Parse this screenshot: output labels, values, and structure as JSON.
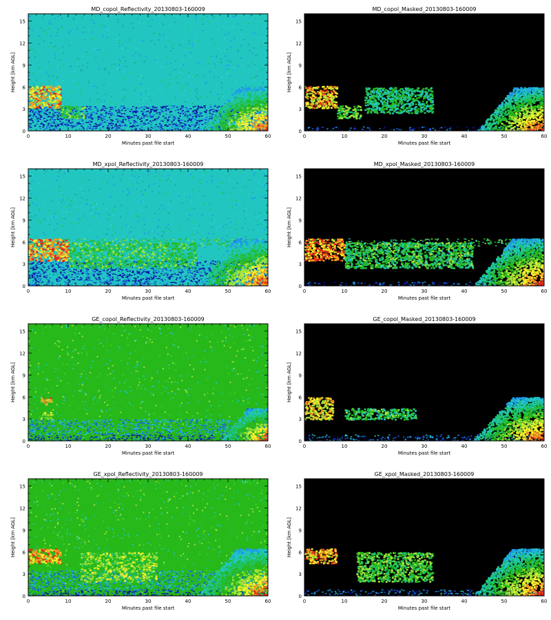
{
  "figure": {
    "colors": {
      "background": "#ffffff",
      "masked_background": "#000000",
      "reflectivity_scale": [
        "#0a10a0",
        "#1b5ee0",
        "#1e9be8",
        "#22c6c0",
        "#1fc46a",
        "#27b81a",
        "#9fe23a",
        "#f6f02a",
        "#f39a22",
        "#e22a1a"
      ]
    }
  },
  "chart_data": [
    {
      "type": "heatmap",
      "title": "MD_copol_Reflectivity_20130803-160009",
      "xlabel": "Minutes past file start",
      "ylabel": "Height [km AGL]",
      "xlim": [
        0,
        60
      ],
      "ylim": [
        0,
        16
      ],
      "xticks": [
        "0",
        "10",
        "20",
        "30",
        "40",
        "50",
        "60"
      ],
      "yticks": [
        "0",
        "3",
        "6",
        "9",
        "12",
        "15"
      ],
      "masked": false,
      "fill": "noise",
      "features": [
        {
          "name": "low layer",
          "x": [
            0,
            60
          ],
          "y": [
            0,
            0.6
          ],
          "value": 0.15
        },
        {
          "name": "lower band",
          "x": [
            0,
            60
          ],
          "y": [
            0.6,
            3.5
          ],
          "value": 0.08
        },
        {
          "name": "left cloud layer",
          "x": [
            0,
            8
          ],
          "y": [
            3.2,
            6.2
          ],
          "value": 0.8
        },
        {
          "name": "left cloud fragments",
          "x": [
            8,
            14
          ],
          "y": [
            1.8,
            3.5
          ],
          "value": 0.55
        },
        {
          "name": "storm",
          "x": [
            43,
            60
          ],
          "y": [
            0,
            6
          ],
          "value": 0.85
        }
      ]
    },
    {
      "type": "heatmap",
      "title": "MD_copol_Masked_20130803-160009",
      "xlabel": "Minutes past file start",
      "ylabel": "Height [km AGL]",
      "xlim": [
        0,
        60
      ],
      "ylim": [
        0,
        16
      ],
      "xticks": [
        "0",
        "10",
        "20",
        "30",
        "40",
        "50",
        "60"
      ],
      "yticks": [
        "0",
        "3",
        "6",
        "9",
        "12",
        "15"
      ],
      "masked": true,
      "fill": "none",
      "features": [
        {
          "name": "low layer",
          "x": [
            0,
            60
          ],
          "y": [
            0,
            0.6
          ],
          "value": 0.15
        },
        {
          "name": "left cloud layer",
          "x": [
            0,
            8
          ],
          "y": [
            3.2,
            6.2
          ],
          "value": 0.8
        },
        {
          "name": "left cloud fragments",
          "x": [
            8,
            14
          ],
          "y": [
            1.8,
            3.5
          ],
          "value": 0.55
        },
        {
          "name": "mid fragments",
          "x": [
            15,
            32
          ],
          "y": [
            2.5,
            6
          ],
          "value": 0.45
        },
        {
          "name": "storm",
          "x": [
            43,
            60
          ],
          "y": [
            0,
            6
          ],
          "value": 0.85
        }
      ]
    },
    {
      "type": "heatmap",
      "title": "MD_xpol_Reflectivity_20130803-160009",
      "xlabel": "Minutes past file start",
      "ylabel": "Height [km AGL]",
      "xlim": [
        0,
        60
      ],
      "ylim": [
        0,
        16
      ],
      "xticks": [
        "0",
        "10",
        "20",
        "30",
        "40",
        "50",
        "60"
      ],
      "yticks": [
        "0",
        "3",
        "6",
        "9",
        "12",
        "15"
      ],
      "masked": false,
      "fill": "noise",
      "features": [
        {
          "name": "low layer",
          "x": [
            0,
            60
          ],
          "y": [
            0,
            0.6
          ],
          "value": 0.15
        },
        {
          "name": "lower band",
          "x": [
            0,
            60
          ],
          "y": [
            0.6,
            3.5
          ],
          "value": 0.08
        },
        {
          "name": "layer at 6 km",
          "x": [
            0,
            60
          ],
          "y": [
            5.5,
            6.5
          ],
          "value": 0.5
        },
        {
          "name": "left cloud layer",
          "x": [
            0,
            10
          ],
          "y": [
            3.5,
            6.5
          ],
          "value": 0.85
        },
        {
          "name": "mid cloud fragments",
          "x": [
            10,
            42
          ],
          "y": [
            2.5,
            6
          ],
          "value": 0.5
        },
        {
          "name": "storm",
          "x": [
            42,
            60
          ],
          "y": [
            0,
            6.5
          ],
          "value": 0.9
        }
      ]
    },
    {
      "type": "heatmap",
      "title": "MD_xpol_Masked_20130803-160009",
      "xlabel": "Minutes past file start",
      "ylabel": "Height [km AGL]",
      "xlim": [
        0,
        60
      ],
      "ylim": [
        0,
        16
      ],
      "xticks": [
        "0",
        "10",
        "20",
        "30",
        "40",
        "50",
        "60"
      ],
      "yticks": [
        "0",
        "3",
        "6",
        "9",
        "12",
        "15"
      ],
      "masked": true,
      "fill": "none",
      "features": [
        {
          "name": "low layer",
          "x": [
            0,
            60
          ],
          "y": [
            0,
            0.6
          ],
          "value": 0.15
        },
        {
          "name": "layer at 6 km",
          "x": [
            0,
            60
          ],
          "y": [
            5.5,
            6.5
          ],
          "value": 0.5
        },
        {
          "name": "left cloud layer",
          "x": [
            0,
            10
          ],
          "y": [
            3.5,
            6.5
          ],
          "value": 0.85
        },
        {
          "name": "mid cloud fragments",
          "x": [
            10,
            42
          ],
          "y": [
            2.5,
            6
          ],
          "value": 0.5
        },
        {
          "name": "storm",
          "x": [
            42,
            60
          ],
          "y": [
            0,
            6.5
          ],
          "value": 0.9
        }
      ]
    },
    {
      "type": "heatmap",
      "title": "GE_copol_Reflectivity_20130803-160009",
      "xlabel": "Minutes past file start",
      "ylabel": "Height [km AGL]",
      "xlim": [
        0,
        60
      ],
      "ylim": [
        0,
        16
      ],
      "xticks": [
        "0",
        "10",
        "20",
        "30",
        "40",
        "50",
        "60"
      ],
      "yticks": [
        "0",
        "3",
        "6",
        "9",
        "12",
        "15"
      ],
      "masked": false,
      "fill": "noise-green",
      "features": [
        {
          "name": "low layer",
          "x": [
            0,
            60
          ],
          "y": [
            0,
            0.9
          ],
          "value": 0.1
        },
        {
          "name": "lower band",
          "x": [
            0,
            60
          ],
          "y": [
            0.9,
            3
          ],
          "value": 0.25
        },
        {
          "name": "left cloud",
          "x": [
            3,
            6
          ],
          "y": [
            5,
            6
          ],
          "value": 0.8
        },
        {
          "name": "left small cloud",
          "x": [
            3,
            6
          ],
          "y": [
            3,
            4
          ],
          "value": 0.65
        },
        {
          "name": "storm",
          "x": [
            48,
            60
          ],
          "y": [
            0,
            4.5
          ],
          "value": 0.9
        }
      ]
    },
    {
      "type": "heatmap",
      "title": "GE_copol_Masked_20130803-160009",
      "xlabel": "Minutes past file start",
      "ylabel": "Height [km AGL]",
      "xlim": [
        0,
        60
      ],
      "ylim": [
        0,
        16
      ],
      "xticks": [
        "0",
        "10",
        "20",
        "30",
        "40",
        "50",
        "60"
      ],
      "yticks": [
        "0",
        "3",
        "6",
        "9",
        "12",
        "15"
      ],
      "masked": true,
      "fill": "none",
      "features": [
        {
          "name": "low layer",
          "x": [
            0,
            60
          ],
          "y": [
            0,
            0.9
          ],
          "value": 0.2
        },
        {
          "name": "left cloud",
          "x": [
            0,
            7
          ],
          "y": [
            3,
            6
          ],
          "value": 0.75
        },
        {
          "name": "small fragments",
          "x": [
            10,
            28
          ],
          "y": [
            3,
            4.5
          ],
          "value": 0.5
        },
        {
          "name": "storm",
          "x": [
            42,
            60
          ],
          "y": [
            0,
            6
          ],
          "value": 0.9
        }
      ]
    },
    {
      "type": "heatmap",
      "title": "GE_xpol_Reflectivity_20130803-160009",
      "xlabel": "Minutes past file start",
      "ylabel": "Height [km AGL]",
      "xlim": [
        0,
        60
      ],
      "ylim": [
        0,
        16
      ],
      "xticks": [
        "0",
        "10",
        "20",
        "30",
        "40",
        "50",
        "60"
      ],
      "yticks": [
        "0",
        "3",
        "6",
        "9",
        "12",
        "15"
      ],
      "masked": false,
      "fill": "noise-green",
      "features": [
        {
          "name": "low layer",
          "x": [
            0,
            60
          ],
          "y": [
            0,
            0.9
          ],
          "value": 0.1
        },
        {
          "name": "lower band",
          "x": [
            0,
            60
          ],
          "y": [
            0.9,
            3.5
          ],
          "value": 0.25
        },
        {
          "name": "left cloud layer",
          "x": [
            0,
            8
          ],
          "y": [
            4.5,
            6.5
          ],
          "value": 0.85
        },
        {
          "name": "mid fragments",
          "x": [
            13,
            32
          ],
          "y": [
            2,
            6
          ],
          "value": 0.6
        },
        {
          "name": "storm",
          "x": [
            42,
            60
          ],
          "y": [
            0,
            6.5
          ],
          "value": 0.9
        }
      ]
    },
    {
      "type": "heatmap",
      "title": "GE_xpol_Masked_20130803-160009",
      "xlabel": "Minutes past file start",
      "ylabel": "Height [km AGL]",
      "xlim": [
        0,
        60
      ],
      "ylim": [
        0,
        16
      ],
      "xticks": [
        "0",
        "10",
        "20",
        "30",
        "40",
        "50",
        "60"
      ],
      "yticks": [
        "0",
        "3",
        "6",
        "9",
        "12",
        "15"
      ],
      "masked": true,
      "fill": "none",
      "features": [
        {
          "name": "low layer",
          "x": [
            0,
            60
          ],
          "y": [
            0,
            0.9
          ],
          "value": 0.2
        },
        {
          "name": "left cloud layer",
          "x": [
            0,
            8
          ],
          "y": [
            4.5,
            6.5
          ],
          "value": 0.8
        },
        {
          "name": "mid fragments",
          "x": [
            13,
            32
          ],
          "y": [
            2,
            6
          ],
          "value": 0.55
        },
        {
          "name": "storm",
          "x": [
            42,
            60
          ],
          "y": [
            0,
            6.5
          ],
          "value": 0.9
        }
      ]
    }
  ]
}
